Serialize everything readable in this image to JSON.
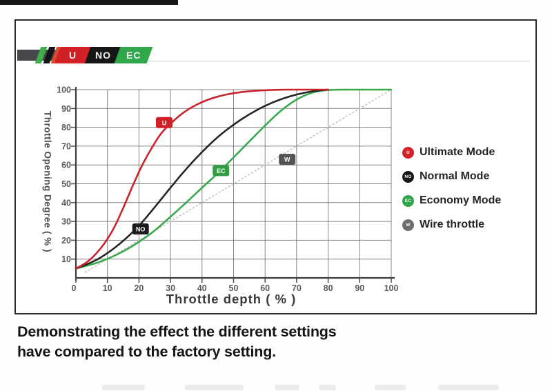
{
  "logo": {
    "stripes": [
      "#3fae49",
      "#141414",
      "#e0492f"
    ],
    "segments": [
      {
        "label": "U",
        "color": "#d22027"
      },
      {
        "label": "NO",
        "color": "#161616"
      },
      {
        "label": "EC",
        "color": "#2fa74a"
      }
    ]
  },
  "chart_data": {
    "type": "line",
    "title": "",
    "xlabel": "Throttle depth ( % )",
    "ylabel": "Throttle Opening Degree ( % )",
    "xlim": [
      0,
      100
    ],
    "ylim": [
      0,
      100
    ],
    "grid": true,
    "x_ticks": [
      0,
      10,
      20,
      30,
      40,
      50,
      60,
      70,
      80,
      90,
      100
    ],
    "y_ticks": [
      10,
      20,
      30,
      40,
      50,
      60,
      70,
      80,
      90,
      100
    ],
    "legend_position": "right",
    "series": [
      {
        "name": "Ultimate Mode",
        "color": "#c9232b",
        "badge": "U",
        "badge_color": "#ce2127",
        "badge_at": [
          28,
          82.5
        ],
        "style": "solid",
        "points": [
          [
            0,
            5
          ],
          [
            3,
            7.5
          ],
          [
            6,
            12
          ],
          [
            9,
            18
          ],
          [
            12,
            26
          ],
          [
            15,
            37
          ],
          [
            18,
            49
          ],
          [
            21,
            60
          ],
          [
            24,
            69
          ],
          [
            27,
            77
          ],
          [
            30,
            82
          ],
          [
            33,
            86.5
          ],
          [
            36,
            90
          ],
          [
            40,
            93.5
          ],
          [
            45,
            96.5
          ],
          [
            50,
            98.2
          ],
          [
            55,
            99.2
          ],
          [
            60,
            99.7
          ],
          [
            65,
            100
          ],
          [
            70,
            100
          ],
          [
            80,
            100
          ]
        ]
      },
      {
        "name": "Normal Mode",
        "color": "#252525",
        "badge": "NO",
        "badge_color": "#1c1c1c",
        "badge_at": [
          20.5,
          26
        ],
        "style": "solid",
        "points": [
          [
            0,
            5
          ],
          [
            5,
            8
          ],
          [
            10,
            13
          ],
          [
            15,
            19.5
          ],
          [
            20,
            27.5
          ],
          [
            25,
            37.5
          ],
          [
            30,
            48
          ],
          [
            35,
            58
          ],
          [
            40,
            67
          ],
          [
            45,
            75
          ],
          [
            50,
            81.5
          ],
          [
            55,
            87
          ],
          [
            60,
            91.5
          ],
          [
            65,
            95
          ],
          [
            70,
            97.5
          ],
          [
            75,
            99.2
          ],
          [
            80,
            100
          ]
        ]
      },
      {
        "name": "Economy Mode",
        "color": "#3aa94d",
        "badge": "EC",
        "badge_color": "#2f9e45",
        "badge_at": [
          46,
          57
        ],
        "style": "solid",
        "points": [
          [
            0,
            5
          ],
          [
            5,
            7
          ],
          [
            10,
            10
          ],
          [
            15,
            14
          ],
          [
            20,
            19
          ],
          [
            25,
            25
          ],
          [
            30,
            32.5
          ],
          [
            35,
            40
          ],
          [
            40,
            48
          ],
          [
            45,
            55.5
          ],
          [
            50,
            64
          ],
          [
            55,
            72.5
          ],
          [
            60,
            81
          ],
          [
            65,
            89
          ],
          [
            70,
            95
          ],
          [
            75,
            98.7
          ],
          [
            80,
            100
          ],
          [
            90,
            100
          ],
          [
            100,
            100
          ]
        ]
      },
      {
        "name": "Wire throttle",
        "color": "#c2c2c2",
        "badge": "W",
        "badge_color": "#555555",
        "badge_at": [
          67,
          63
        ],
        "style": "dashed",
        "points": [
          [
            3,
            3
          ],
          [
            100,
            100
          ]
        ]
      }
    ],
    "legend": {
      "items": [
        {
          "label": "Ultimate Mode",
          "color": "#d42027",
          "glyph": "U"
        },
        {
          "label": "Normal Mode",
          "color": "#161616",
          "glyph": "NO"
        },
        {
          "label": "Economy Mode",
          "color": "#2ea44b",
          "glyph": "EC"
        },
        {
          "label": "Wire throttle",
          "color": "#6e6e6e",
          "glyph": "W"
        }
      ]
    }
  },
  "caption": {
    "line1": "Demonstrating the effect the different settings",
    "line2": "have compared to the factory setting."
  },
  "bottom_strip": {
    "segments": [
      [
        148,
        62
      ],
      [
        268,
        85
      ],
      [
        398,
        36
      ],
      [
        462,
        25
      ],
      [
        543,
        46
      ],
      [
        635,
        88
      ]
    ]
  }
}
